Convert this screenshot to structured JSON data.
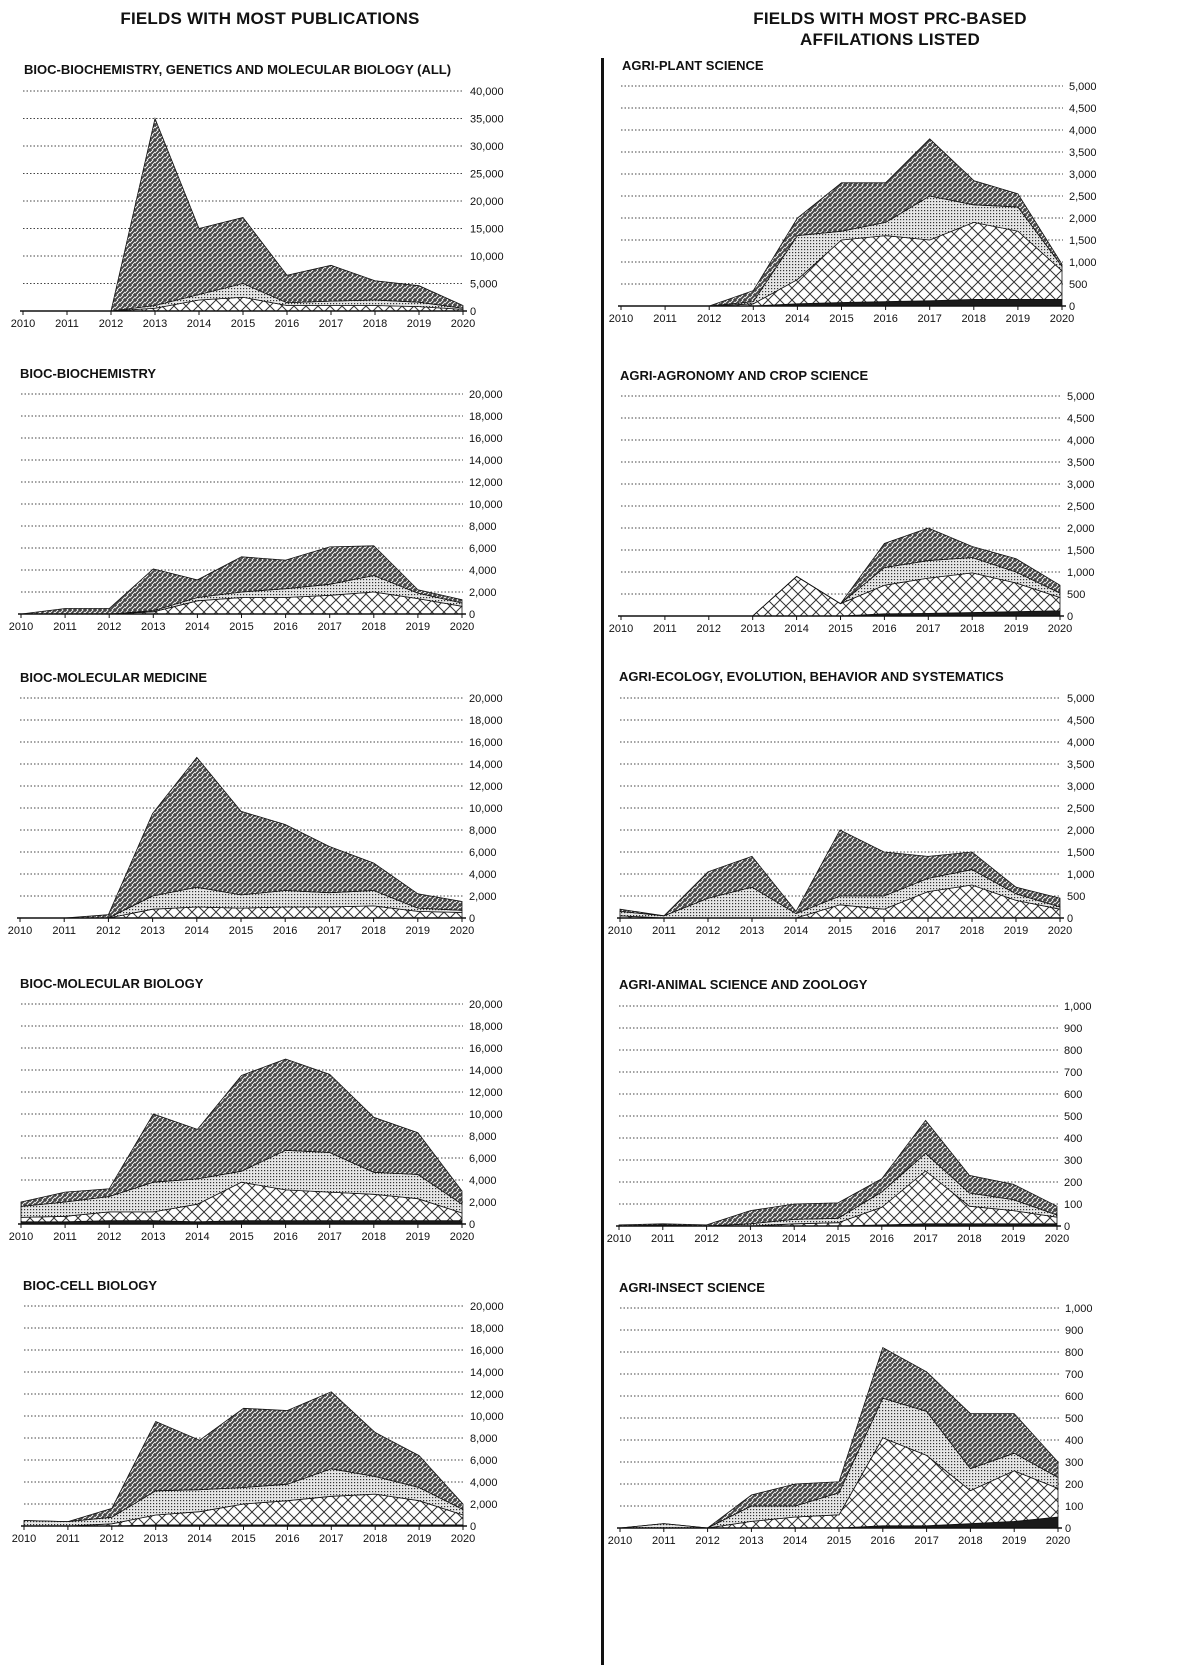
{
  "headers": {
    "left": "FIELDS WITH MOST PUBLICATIONS",
    "right_line1": "FIELDS WITH MOST PRC-BASED",
    "right_line2": "AFFILATIONS LISTED"
  },
  "chart_data": [
    {
      "type": "area",
      "title": "BIOC-BIOCHEMISTRY, GENETICS AND MOLECULAR BIOLOGY (ALL)",
      "x": [
        2010,
        2011,
        2012,
        2013,
        2014,
        2015,
        2016,
        2017,
        2018,
        2019,
        2020
      ],
      "ylim": [
        0,
        40000
      ],
      "yticks": [
        0,
        5000,
        10000,
        15000,
        20000,
        25000,
        30000,
        35000,
        40000
      ],
      "series": [
        {
          "values": [
            0,
            0,
            0,
            0,
            0,
            0,
            0,
            0,
            0,
            0,
            0
          ]
        },
        {
          "values": [
            0,
            0,
            0,
            500,
            2000,
            2500,
            1000,
            1000,
            1000,
            800,
            300
          ]
        },
        {
          "values": [
            0,
            0,
            0,
            500,
            1000,
            2500,
            500,
            800,
            1000,
            800,
            200
          ]
        },
        {
          "values": [
            0,
            0,
            0,
            34000,
            12000,
            12000,
            5000,
            6500,
            3500,
            3000,
            500
          ]
        }
      ]
    },
    {
      "type": "area",
      "title": "BIOC-BIOCHEMISTRY",
      "x": [
        2010,
        2011,
        2012,
        2013,
        2014,
        2015,
        2016,
        2017,
        2018,
        2019,
        2020
      ],
      "ylim": [
        0,
        20000
      ],
      "yticks": [
        0,
        2000,
        4000,
        6000,
        8000,
        10000,
        12000,
        14000,
        16000,
        18000,
        20000
      ],
      "series": [
        {
          "values": [
            0,
            0,
            0,
            0,
            0,
            0,
            0,
            0,
            0,
            0,
            0
          ]
        },
        {
          "values": [
            0,
            0,
            0,
            200,
            1200,
            1500,
            1500,
            1700,
            2000,
            1400,
            700
          ]
        },
        {
          "values": [
            0,
            0,
            0,
            100,
            300,
            500,
            800,
            1000,
            1500,
            500,
            300
          ]
        },
        {
          "values": [
            0,
            500,
            500,
            3800,
            1600,
            3200,
            2600,
            3400,
            2700,
            300,
            300
          ]
        }
      ]
    },
    {
      "type": "area",
      "title": "BIOC-MOLECULAR MEDICINE",
      "x": [
        2010,
        2011,
        2012,
        2013,
        2014,
        2015,
        2016,
        2017,
        2018,
        2019,
        2020
      ],
      "ylim": [
        0,
        20000
      ],
      "yticks": [
        0,
        2000,
        4000,
        6000,
        8000,
        10000,
        12000,
        14000,
        16000,
        18000,
        20000
      ],
      "series": [
        {
          "values": [
            0,
            0,
            0,
            0,
            0,
            0,
            0,
            0,
            0,
            0,
            0
          ]
        },
        {
          "values": [
            0,
            0,
            0,
            800,
            1000,
            900,
            1000,
            1000,
            1100,
            600,
            500
          ]
        },
        {
          "values": [
            0,
            0,
            0,
            1200,
            1800,
            1200,
            1500,
            1300,
            1400,
            300,
            200
          ]
        },
        {
          "values": [
            0,
            0,
            300,
            7500,
            11800,
            7600,
            6000,
            4200,
            2500,
            1300,
            800
          ]
        }
      ]
    },
    {
      "type": "area",
      "title": "BIOC-MOLECULAR BIOLOGY",
      "x": [
        2010,
        2011,
        2012,
        2013,
        2014,
        2015,
        2016,
        2017,
        2018,
        2019,
        2020
      ],
      "ylim": [
        0,
        20000
      ],
      "yticks": [
        0,
        2000,
        4000,
        6000,
        8000,
        10000,
        12000,
        14000,
        16000,
        18000,
        20000
      ],
      "series": [
        {
          "values": [
            200,
            200,
            300,
            300,
            200,
            300,
            300,
            300,
            300,
            300,
            300
          ]
        },
        {
          "values": [
            400,
            500,
            800,
            800,
            1600,
            3500,
            2800,
            2600,
            2400,
            2000,
            700
          ]
        },
        {
          "values": [
            1000,
            1300,
            1400,
            2700,
            2300,
            1000,
            3600,
            3600,
            2000,
            2200,
            800
          ]
        },
        {
          "values": [
            400,
            900,
            700,
            6200,
            4500,
            8700,
            8300,
            7100,
            5000,
            3800,
            1200
          ]
        }
      ]
    },
    {
      "type": "area",
      "title": "BIOC-CELL BIOLOGY",
      "x": [
        2010,
        2011,
        2012,
        2013,
        2014,
        2015,
        2016,
        2017,
        2018,
        2019,
        2020
      ],
      "ylim": [
        0,
        20000
      ],
      "yticks": [
        0,
        2000,
        4000,
        6000,
        8000,
        10000,
        12000,
        14000,
        16000,
        18000,
        20000
      ],
      "series": [
        {
          "values": [
            0,
            0,
            0,
            100,
            100,
            100,
            100,
            100,
            100,
            100,
            100
          ]
        },
        {
          "values": [
            0,
            0,
            200,
            900,
            1200,
            1900,
            2200,
            2600,
            2800,
            2200,
            900
          ]
        },
        {
          "values": [
            500,
            400,
            600,
            2200,
            2000,
            1500,
            1500,
            2500,
            1600,
            1200,
            500
          ]
        },
        {
          "values": [
            0,
            0,
            800,
            6300,
            4500,
            7200,
            6700,
            7000,
            4000,
            2900,
            500
          ]
        }
      ]
    },
    {
      "type": "area",
      "title": "AGRI-PLANT SCIENCE",
      "x": [
        2010,
        2011,
        2012,
        2013,
        2014,
        2015,
        2016,
        2017,
        2018,
        2019,
        2020
      ],
      "ylim": [
        0,
        5000
      ],
      "yticks": [
        0,
        500,
        1000,
        1500,
        2000,
        2500,
        3000,
        3500,
        4000,
        4500,
        5000
      ],
      "series": [
        {
          "values": [
            0,
            0,
            0,
            0,
            50,
            80,
            100,
            120,
            150,
            150,
            150
          ]
        },
        {
          "values": [
            0,
            0,
            0,
            50,
            550,
            1420,
            1500,
            1380,
            1750,
            1550,
            650
          ]
        },
        {
          "values": [
            0,
            0,
            0,
            50,
            1000,
            200,
            300,
            1000,
            400,
            550,
            100
          ]
        },
        {
          "values": [
            0,
            0,
            0,
            250,
            400,
            1100,
            900,
            1300,
            550,
            300,
            50
          ]
        }
      ]
    },
    {
      "type": "area",
      "title": "AGRI-AGRONOMY AND CROP SCIENCE",
      "x": [
        2010,
        2011,
        2012,
        2013,
        2014,
        2015,
        2016,
        2017,
        2018,
        2019,
        2020
      ],
      "ylim": [
        0,
        5000
      ],
      "yticks": [
        0,
        500,
        1000,
        1500,
        2000,
        2500,
        3000,
        3500,
        4000,
        4500,
        5000
      ],
      "series": [
        {
          "values": [
            0,
            0,
            0,
            0,
            0,
            0,
            50,
            60,
            80,
            100,
            120
          ]
        },
        {
          "values": [
            0,
            0,
            0,
            0,
            900,
            280,
            650,
            800,
            900,
            650,
            300
          ]
        },
        {
          "values": [
            0,
            0,
            0,
            0,
            0,
            0,
            400,
            400,
            350,
            250,
            100
          ]
        },
        {
          "values": [
            0,
            0,
            0,
            0,
            0,
            0,
            550,
            740,
            250,
            300,
            180
          ]
        }
      ]
    },
    {
      "type": "area",
      "title": "AGRI-ECOLOGY, EVOLUTION, BEHAVIOR AND SYSTEMATICS",
      "x": [
        2010,
        2011,
        2012,
        2013,
        2014,
        2015,
        2016,
        2017,
        2018,
        2019,
        2020
      ],
      "ylim": [
        0,
        5000
      ],
      "yticks": [
        0,
        500,
        1000,
        1500,
        2000,
        2500,
        3000,
        3500,
        4000,
        4500,
        5000
      ],
      "series": [
        {
          "values": [
            0,
            0,
            0,
            0,
            0,
            0,
            0,
            0,
            0,
            0,
            0
          ]
        },
        {
          "values": [
            50,
            0,
            0,
            0,
            0,
            300,
            200,
            600,
            750,
            400,
            200
          ]
        },
        {
          "values": [
            100,
            50,
            450,
            700,
            100,
            200,
            300,
            300,
            350,
            150,
            50
          ]
        },
        {
          "values": [
            50,
            0,
            600,
            700,
            50,
            1500,
            1000,
            500,
            400,
            150,
            200
          ]
        }
      ]
    },
    {
      "type": "area",
      "title": "AGRI-ANIMAL SCIENCE AND ZOOLOGY",
      "x": [
        2010,
        2011,
        2012,
        2013,
        2014,
        2015,
        2016,
        2017,
        2018,
        2019,
        2020
      ],
      "ylim": [
        0,
        1000
      ],
      "yticks": [
        0,
        100,
        200,
        300,
        400,
        500,
        600,
        700,
        800,
        900,
        1000
      ],
      "series": [
        {
          "values": [
            0,
            0,
            0,
            0,
            0,
            0,
            5,
            10,
            10,
            10,
            10
          ]
        },
        {
          "values": [
            0,
            5,
            0,
            0,
            10,
            15,
            80,
            240,
            80,
            60,
            30
          ]
        },
        {
          "values": [
            0,
            0,
            0,
            10,
            20,
            20,
            70,
            80,
            60,
            50,
            10
          ]
        },
        {
          "values": [
            5,
            5,
            5,
            60,
            70,
            70,
            60,
            150,
            80,
            70,
            40
          ]
        }
      ]
    },
    {
      "type": "area",
      "title": "AGRI-INSECT SCIENCE",
      "x": [
        2010,
        2011,
        2012,
        2013,
        2014,
        2015,
        2016,
        2017,
        2018,
        2019,
        2020
      ],
      "ylim": [
        0,
        1000
      ],
      "yticks": [
        0,
        100,
        200,
        300,
        400,
        500,
        600,
        700,
        800,
        900,
        1000
      ],
      "series": [
        {
          "values": [
            0,
            0,
            0,
            0,
            0,
            0,
            10,
            10,
            20,
            30,
            50
          ]
        },
        {
          "values": [
            0,
            0,
            0,
            30,
            50,
            60,
            400,
            320,
            150,
            230,
            130
          ]
        },
        {
          "values": [
            0,
            20,
            0,
            70,
            50,
            100,
            180,
            200,
            100,
            80,
            50
          ]
        },
        {
          "values": [
            0,
            0,
            0,
            50,
            100,
            50,
            230,
            180,
            250,
            180,
            70
          ]
        }
      ]
    }
  ]
}
